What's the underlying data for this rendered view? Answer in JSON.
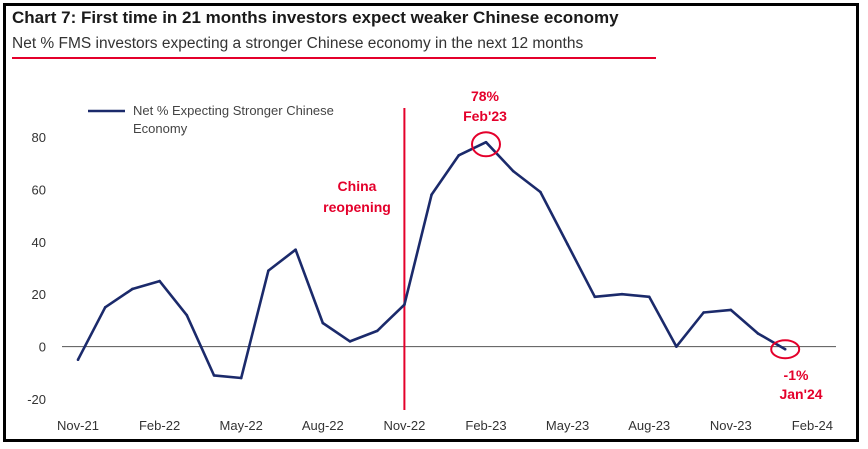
{
  "title": "Chart 7: First time in 21 months investors expect weaker Chinese economy",
  "subtitle": "Net % FMS investors expecting a stronger Chinese economy in the next 12 months",
  "colors": {
    "series": "#1b2a6b",
    "accent": "#e4002b",
    "axis": "#555555"
  },
  "chart_data": {
    "type": "line",
    "title": "Chart 7: First time in 21 months investors expect weaker Chinese economy",
    "subtitle": "Net % FMS investors expecting a stronger Chinese economy in the next 12 months",
    "xlabel": "",
    "ylabel": "",
    "ylim": [
      -20,
      80
    ],
    "yticks": [
      "80",
      "60",
      "40",
      "20",
      "0",
      "-20"
    ],
    "xticks": [
      "Nov-21",
      "Feb-22",
      "May-22",
      "Aug-22",
      "Nov-22",
      "Feb-23",
      "May-23",
      "Aug-23",
      "Nov-23",
      "Feb-24"
    ],
    "grid": false,
    "legend_position": "top-left",
    "x": [
      "Nov-21",
      "Dec-21",
      "Jan-22",
      "Feb-22",
      "Mar-22",
      "Apr-22",
      "May-22",
      "Jun-22",
      "Jul-22",
      "Aug-22",
      "Sep-22",
      "Oct-22",
      "Nov-22",
      "Dec-22",
      "Jan-23",
      "Feb-23",
      "Mar-23",
      "Apr-23",
      "May-23",
      "Jun-23",
      "Jul-23",
      "Aug-23",
      "Sep-23",
      "Oct-23",
      "Nov-23",
      "Dec-23",
      "Jan-24"
    ],
    "series": [
      {
        "name": "Net % Expecting Stronger Chinese Economy",
        "values": [
          -5,
          15,
          22,
          25,
          12,
          -11,
          -12,
          29,
          37,
          9,
          2,
          6,
          16,
          58,
          73,
          78,
          67,
          59,
          39,
          19,
          20,
          19,
          0,
          13,
          14,
          5,
          -1
        ]
      }
    ],
    "annotations": [
      {
        "text": "China",
        "text2": "reopening"
      },
      {
        "text": "78%",
        "text2": "Feb'23"
      },
      {
        "text": "-1%",
        "text2": "Jan'24"
      }
    ]
  }
}
